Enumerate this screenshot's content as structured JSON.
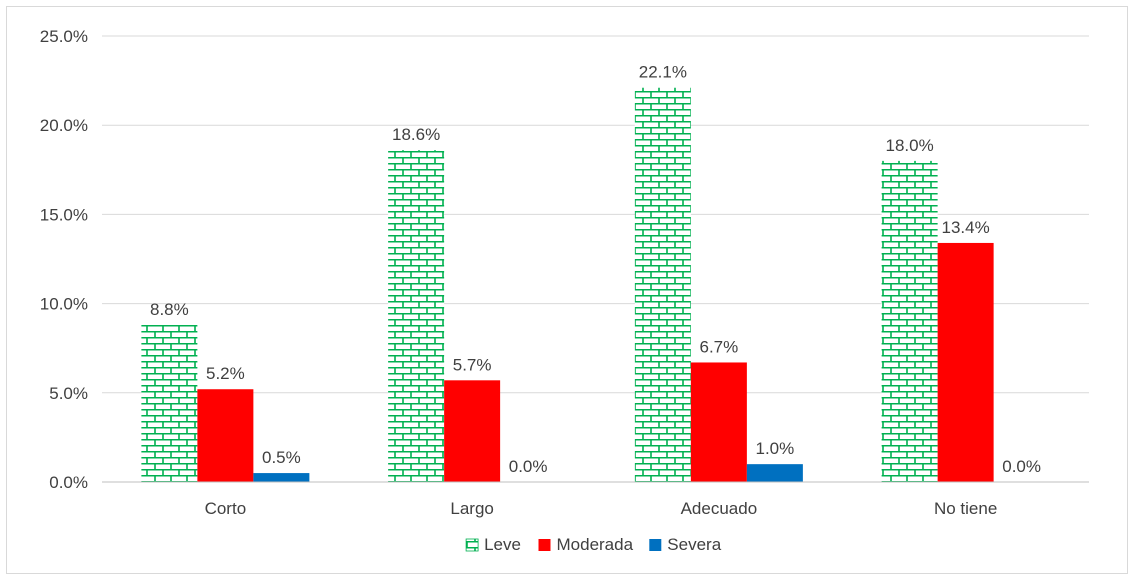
{
  "chart_data": {
    "type": "bar",
    "categories": [
      "Corto",
      "Largo",
      "Adecuado",
      "No tiene"
    ],
    "series": [
      {
        "name": "Leve",
        "values": [
          8.8,
          18.6,
          22.1,
          18.0
        ],
        "labels": [
          "8.8%",
          "18.6%",
          "22.1%",
          "18.0%"
        ],
        "color": "#00B050",
        "pattern": "brick"
      },
      {
        "name": "Moderada",
        "values": [
          5.2,
          5.7,
          6.7,
          13.4
        ],
        "labels": [
          "5.2%",
          "5.7%",
          "6.7%",
          "13.4%"
        ],
        "color": "#FF0000",
        "pattern": "solid"
      },
      {
        "name": "Severa",
        "values": [
          0.5,
          0.0,
          1.0,
          0.0
        ],
        "labels": [
          "0.5%",
          "0.0%",
          "1.0%",
          "0.0%"
        ],
        "color": "#0070C0",
        "pattern": "solid"
      }
    ],
    "yticks": [
      0,
      5,
      10,
      15,
      20,
      25
    ],
    "ytick_labels": [
      "0.0%",
      "5.0%",
      "10.0%",
      "15.0%",
      "20.0%",
      "25.0%"
    ],
    "ylim": [
      0,
      25
    ],
    "title": "",
    "xlabel": "",
    "ylabel": "",
    "grid": true,
    "legend_position": "bottom"
  }
}
